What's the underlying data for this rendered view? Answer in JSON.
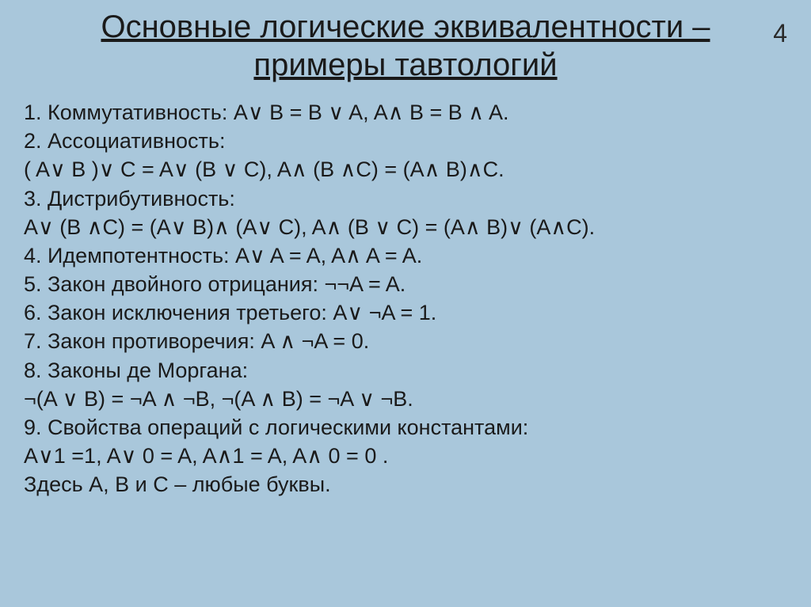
{
  "page_number": "4",
  "title_line1": "Основные логические эквивалентности –",
  "title_line2": "примеры тавтологий",
  "background_color": "#a9c7db",
  "text_color": "#1a1a1a",
  "title_fontsize": 40,
  "body_fontsize": 27,
  "lines": {
    "l1": "1. Коммутативность: A∨ B = B ∨ A, A∧ B = B ∧ A.",
    "l2": "2. Ассоциативность:",
    "l3": "( A∨ B )∨ C = A∨ (B ∨ C), A∧ (B ∧C) = (A∧ B)∧C.",
    "l4": "3. Дистрибутивность:",
    "l5": "A∨ (B ∧C) = (A∨ B)∧ (A∨ C), A∧ (B ∨ C) = (A∧ B)∨ (A∧C).",
    "l6": "4. Идемпотентность: A∨ A = A, A∧ A = A.",
    "l7": "5. Закон двойного отрицания: ¬¬A = A.",
    "l8": "6. Закон исключения третьего: A∨ ¬A = 1.",
    "l9": "7. Закон противоречия: A ∧ ¬A = 0.",
    "l10": "8. Законы де Моргана:",
    "l11": "¬(A ∨ B) = ¬A ∧ ¬B, ¬(A ∧ B) = ¬A ∨ ¬B.",
    "l12": "9. Свойства операций с логическими константами:",
    "l13": "A∨1 =1, A∨ 0 = A, A∧1 = A, A∧ 0 = 0 .",
    "l14": "",
    "l15": "Здесь A, B и C – любые буквы."
  }
}
